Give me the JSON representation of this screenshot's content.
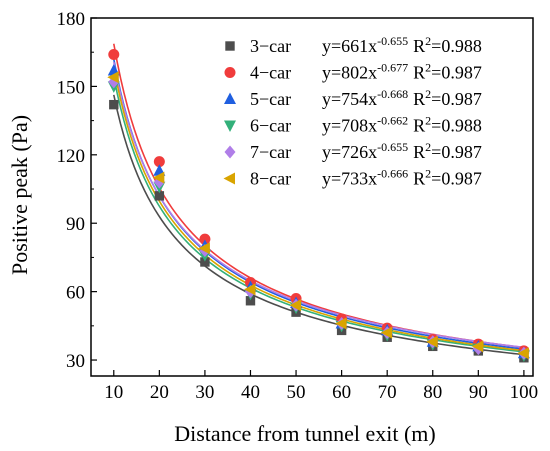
{
  "chart_data": {
    "type": "scatter",
    "title": "",
    "xlabel": "Distance from tunnel exit (m)",
    "ylabel": "Positive peak (Pa)",
    "xlim": [
      5,
      102
    ],
    "ylim": [
      23,
      180
    ],
    "x_ticks": [
      10,
      20,
      30,
      40,
      50,
      60,
      70,
      80,
      90,
      100
    ],
    "y_ticks": [
      30,
      60,
      90,
      120,
      150,
      180
    ],
    "grid": false,
    "legend_position": "top-right",
    "x": [
      10,
      20,
      30,
      40,
      50,
      60,
      70,
      80,
      90,
      100
    ],
    "series": [
      {
        "name": "3−car",
        "marker": "square",
        "color": "#4d4d4d",
        "fit": {
          "a": 661,
          "b": -0.655,
          "a_text": "661",
          "b_text": "-0.655",
          "r2_text": "0.988"
        },
        "values": [
          142,
          102,
          73,
          56,
          51,
          43,
          40,
          36,
          34,
          31
        ]
      },
      {
        "name": "4−car",
        "marker": "circle",
        "color": "#f03c3c",
        "fit": {
          "a": 802,
          "b": -0.677,
          "a_text": "802",
          "b_text": "-0.677",
          "r2_text": "0.987"
        },
        "values": [
          164,
          117,
          83,
          64,
          57,
          48,
          44,
          39,
          37,
          34
        ]
      },
      {
        "name": "5−car",
        "marker": "triangle-up",
        "color": "#1f5fe0",
        "fit": {
          "a": 754,
          "b": -0.668,
          "a_text": "754",
          "b_text": "-0.668",
          "r2_text": "0.987"
        },
        "values": [
          157,
          113,
          80,
          62,
          55,
          46,
          43,
          38,
          36,
          33
        ]
      },
      {
        "name": "6−car",
        "marker": "triangle-down",
        "color": "#33b07a",
        "fit": {
          "a": 708,
          "b": -0.662,
          "a_text": "708",
          "b_text": "-0.662",
          "r2_text": "0.988"
        },
        "values": [
          150,
          106,
          76,
          59,
          53,
          45,
          41,
          37,
          35,
          32
        ]
      },
      {
        "name": "7−car",
        "marker": "diamond",
        "color": "#b07ee8",
        "fit": {
          "a": 726,
          "b": -0.655,
          "a_text": "726",
          "b_text": "-0.655",
          "r2_text": "0.987"
        },
        "values": [
          152,
          108,
          78,
          60,
          54,
          46,
          42,
          38,
          35,
          33
        ]
      },
      {
        "name": "8−car",
        "marker": "triangle-left",
        "color": "#d9a400",
        "fit": {
          "a": 733,
          "b": -0.666,
          "a_text": "733",
          "b_text": "-0.666",
          "r2_text": "0.987"
        },
        "values": [
          154,
          110,
          79,
          61,
          54,
          46,
          42,
          38,
          36,
          33
        ]
      }
    ]
  }
}
